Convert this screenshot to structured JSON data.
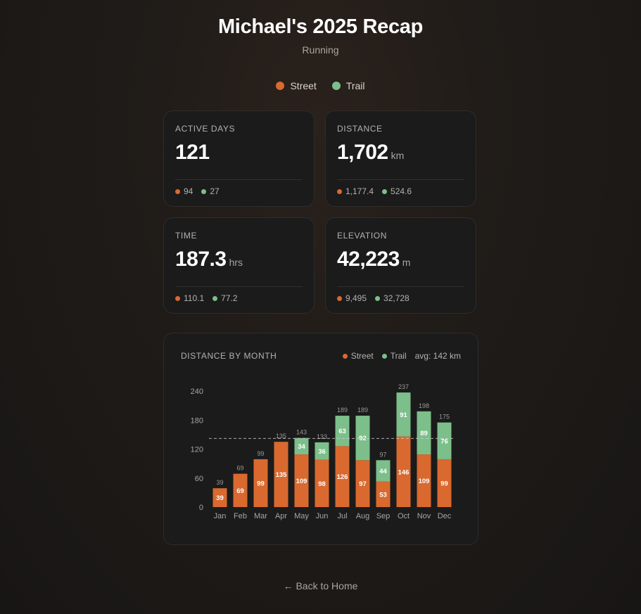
{
  "header": {
    "title": "Michael's 2025 Recap",
    "subtitle": "Running"
  },
  "colors": {
    "street": "#d9692f",
    "trail": "#7cbf8a"
  },
  "legend": {
    "street": "Street",
    "trail": "Trail"
  },
  "stats": [
    {
      "label": "ACTIVE DAYS",
      "value": "121",
      "unit": "",
      "street": "94",
      "trail": "27"
    },
    {
      "label": "DISTANCE",
      "value": "1,702",
      "unit": "km",
      "street": "1,177.4",
      "trail": "524.6"
    },
    {
      "label": "TIME",
      "value": "187.3",
      "unit": "hrs",
      "street": "110.1",
      "trail": "77.2"
    },
    {
      "label": "ELEVATION",
      "value": "42,223",
      "unit": "m",
      "street": "9,495",
      "trail": "32,728"
    }
  ],
  "chart_title": "DISTANCE BY MONTH",
  "chart_legend": {
    "street": "Street",
    "trail": "Trail",
    "avg": "avg: 142 km"
  },
  "chart_data": {
    "type": "bar",
    "stacked": true,
    "categories": [
      "Jan",
      "Feb",
      "Mar",
      "Apr",
      "May",
      "Jun",
      "Jul",
      "Aug",
      "Sep",
      "Oct",
      "Nov",
      "Dec"
    ],
    "series": [
      {
        "name": "Street",
        "values": [
          39,
          69,
          99,
          135,
          109,
          98,
          126,
          97,
          53,
          146,
          109,
          99
        ]
      },
      {
        "name": "Trail",
        "values": [
          0,
          0,
          0,
          0,
          34,
          36,
          63,
          92,
          44,
          91,
          89,
          76
        ]
      }
    ],
    "totals": [
      39,
      69,
      99,
      135,
      143,
      133,
      189,
      189,
      97,
      237,
      198,
      175
    ],
    "average": 142,
    "yticks": [
      0,
      60,
      120,
      180,
      240
    ],
    "ylim": [
      0,
      240
    ]
  },
  "footer": {
    "back_label": "← Back to Home"
  }
}
